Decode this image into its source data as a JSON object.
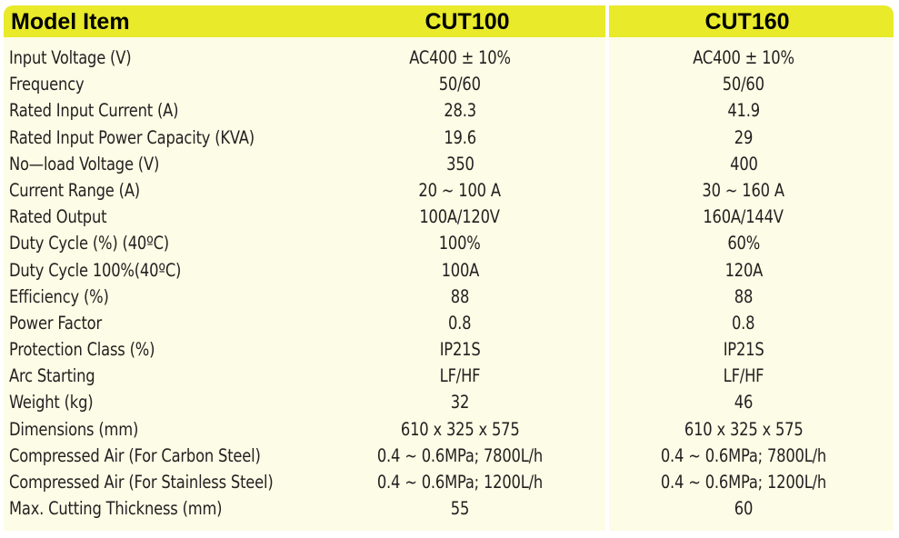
{
  "header": {
    "item_label": "Model Item",
    "models": [
      "CUT100",
      "CUT160"
    ]
  },
  "rows": [
    {
      "label": "Input Voltage (V)",
      "values": [
        "AC400 ± 10%",
        "AC400 ± 10%"
      ]
    },
    {
      "label": "Frequency",
      "values": [
        "50/60",
        "50/60"
      ]
    },
    {
      "label": "Rated Input Current (A)",
      "values": [
        "28.3",
        "41.9"
      ]
    },
    {
      "label": "Rated Input Power Capacity (KVA)",
      "values": [
        "19.6",
        "29"
      ]
    },
    {
      "label": "No—load Voltage (V)",
      "values": [
        "350",
        "400"
      ]
    },
    {
      "label": "Current Range (A)",
      "values": [
        "20 ~ 100 A",
        "30 ~ 160 A"
      ]
    },
    {
      "label": "Rated Output",
      "values": [
        "100A/120V",
        "160A/144V"
      ]
    },
    {
      "label": "Duty Cycle (%) (40ºC)",
      "values": [
        "100%",
        "60%"
      ]
    },
    {
      "label": "Duty Cycle 100%(40ºC)",
      "values": [
        "100A",
        "120A"
      ]
    },
    {
      "label": "Efficiency (%)",
      "values": [
        "88",
        "88"
      ]
    },
    {
      "label": "Power Factor",
      "values": [
        "0.8",
        "0.8"
      ]
    },
    {
      "label": "Protection Class (%)",
      "values": [
        "IP21S",
        "IP21S"
      ]
    },
    {
      "label": "Arc Starting",
      "values": [
        "LF/HF",
        "LF/HF"
      ]
    },
    {
      "label": "Weight (kg)",
      "values": [
        "32",
        "46"
      ]
    },
    {
      "label": "Dimensions (mm)",
      "values": [
        "610 x 325 x 575",
        "610 x 325 x 575"
      ]
    },
    {
      "label": "Compressed Air (For Carbon Steel)",
      "values": [
        "0.4 ~ 0.6MPa; 7800L/h",
        "0.4 ~ 0.6MPa; 7800L/h"
      ]
    },
    {
      "label": "Compressed Air (For Stainless Steel)",
      "values": [
        "0.4 ~ 0.6MPa; 1200L/h",
        "0.4 ~ 0.6MPa; 1200L/h"
      ]
    },
    {
      "label": "Max. Cutting Thickness (mm)",
      "values": [
        "55",
        "60"
      ]
    }
  ],
  "colors": {
    "header_bg": "#e8ea2a",
    "body_bg": "#fdfce6",
    "text": "#231f20"
  }
}
